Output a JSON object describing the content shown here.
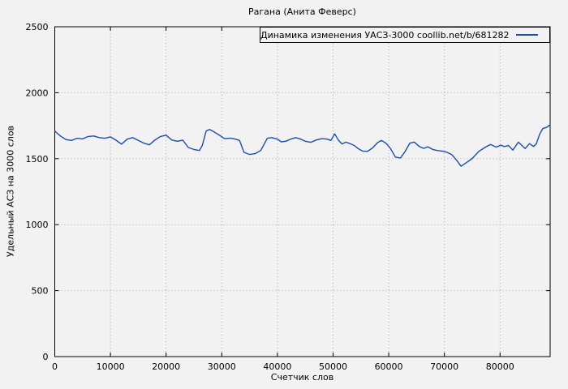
{
  "window": {
    "background": "#f2f2f2"
  },
  "chart_data": {
    "type": "line",
    "title": "Рагана (Анита Феверс)",
    "xlabel": "Счетчик слов",
    "ylabel": "Удельный АСЗ на 3000 слов",
    "xlim": [
      0,
      89000
    ],
    "ylim": [
      0,
      2500
    ],
    "xticks": [
      0,
      10000,
      20000,
      30000,
      40000,
      50000,
      60000,
      70000,
      80000
    ],
    "yticks": [
      0,
      500,
      1000,
      1500,
      2000,
      2500
    ],
    "grid": true,
    "legend": {
      "position": "top-right",
      "box": true,
      "label": "Динамика изменения УАСЗ-3000 coollib.net/b/681282"
    },
    "colors": {
      "line": "#1c4da8",
      "grid": "#a9a9a9",
      "border": "#000000",
      "text": "#000000",
      "background": "#f2f2f2"
    },
    "series": [
      {
        "name": "Динамика изменения УАСЗ-3000 coollib.net/b/681282",
        "color": "#1c4da8",
        "points": [
          [
            0,
            1710
          ],
          [
            1000,
            1672
          ],
          [
            2000,
            1645
          ],
          [
            3000,
            1638
          ],
          [
            4000,
            1655
          ],
          [
            5000,
            1650
          ],
          [
            6000,
            1668
          ],
          [
            7000,
            1672
          ],
          [
            8000,
            1660
          ],
          [
            9000,
            1655
          ],
          [
            10000,
            1665
          ],
          [
            11000,
            1640
          ],
          [
            12000,
            1610
          ],
          [
            13000,
            1648
          ],
          [
            14000,
            1660
          ],
          [
            15000,
            1638
          ],
          [
            16000,
            1618
          ],
          [
            17000,
            1605
          ],
          [
            18000,
            1642
          ],
          [
            19000,
            1668
          ],
          [
            20000,
            1678
          ],
          [
            21000,
            1642
          ],
          [
            22000,
            1632
          ],
          [
            23000,
            1640
          ],
          [
            24000,
            1585
          ],
          [
            25000,
            1570
          ],
          [
            26000,
            1562
          ],
          [
            26500,
            1600
          ],
          [
            27200,
            1710
          ],
          [
            27800,
            1722
          ],
          [
            28500,
            1706
          ],
          [
            29500,
            1680
          ],
          [
            30500,
            1652
          ],
          [
            31500,
            1656
          ],
          [
            32500,
            1648
          ],
          [
            33200,
            1638
          ],
          [
            34000,
            1548
          ],
          [
            35000,
            1532
          ],
          [
            36000,
            1538
          ],
          [
            37000,
            1562
          ],
          [
            37600,
            1608
          ],
          [
            38200,
            1655
          ],
          [
            39000,
            1660
          ],
          [
            40000,
            1648
          ],
          [
            40700,
            1628
          ],
          [
            41500,
            1632
          ],
          [
            42500,
            1650
          ],
          [
            43300,
            1660
          ],
          [
            44200,
            1648
          ],
          [
            45000,
            1632
          ],
          [
            46000,
            1624
          ],
          [
            47000,
            1642
          ],
          [
            48000,
            1652
          ],
          [
            49000,
            1648
          ],
          [
            49600,
            1638
          ],
          [
            50300,
            1688
          ],
          [
            51000,
            1638
          ],
          [
            51600,
            1612
          ],
          [
            52300,
            1625
          ],
          [
            53000,
            1615
          ],
          [
            53800,
            1600
          ],
          [
            54500,
            1577
          ],
          [
            55300,
            1558
          ],
          [
            56200,
            1556
          ],
          [
            57100,
            1582
          ],
          [
            58000,
            1622
          ],
          [
            58700,
            1638
          ],
          [
            59500,
            1618
          ],
          [
            60300,
            1578
          ],
          [
            61200,
            1512
          ],
          [
            62100,
            1505
          ],
          [
            62900,
            1552
          ],
          [
            63800,
            1618
          ],
          [
            64600,
            1626
          ],
          [
            65500,
            1592
          ],
          [
            66300,
            1578
          ],
          [
            67000,
            1590
          ],
          [
            67900,
            1570
          ],
          [
            68700,
            1562
          ],
          [
            69600,
            1558
          ],
          [
            70400,
            1550
          ],
          [
            71300,
            1532
          ],
          [
            72200,
            1488
          ],
          [
            73000,
            1443
          ],
          [
            74000,
            1472
          ],
          [
            75000,
            1502
          ],
          [
            76200,
            1556
          ],
          [
            77400,
            1588
          ],
          [
            78300,
            1608
          ],
          [
            79300,
            1588
          ],
          [
            80100,
            1602
          ],
          [
            80800,
            1592
          ],
          [
            81500,
            1600
          ],
          [
            82300,
            1565
          ],
          [
            83300,
            1625
          ],
          [
            84500,
            1577
          ],
          [
            85300,
            1614
          ],
          [
            86000,
            1593
          ],
          [
            86500,
            1612
          ],
          [
            87100,
            1685
          ],
          [
            87700,
            1730
          ],
          [
            88400,
            1738
          ],
          [
            88900,
            1755
          ]
        ]
      }
    ]
  }
}
